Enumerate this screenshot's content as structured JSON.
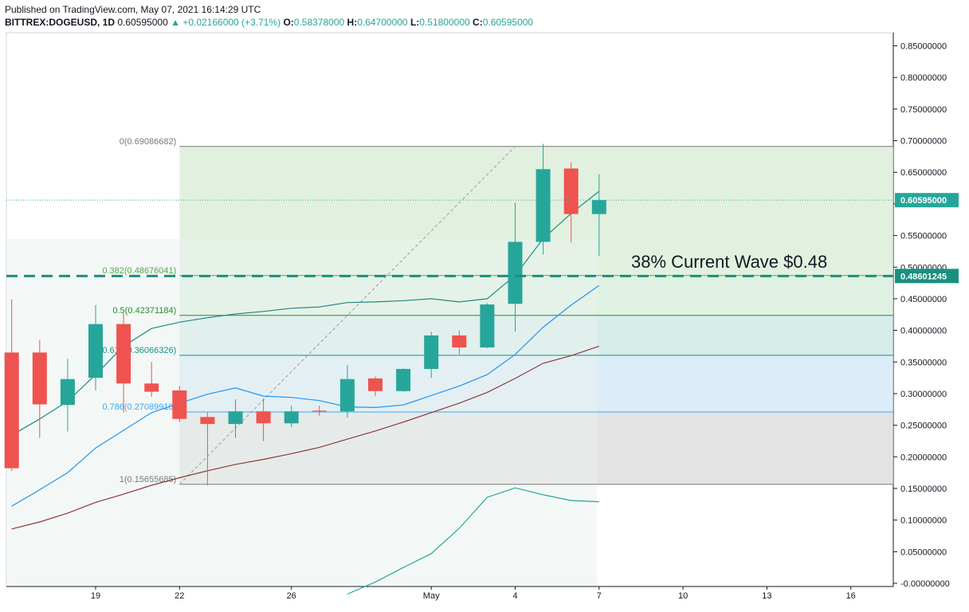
{
  "header": {
    "published": "Published on TradingView.com, May 07, 2021 16:14:29 UTC",
    "symbol": "BITTREX:DOGEUSD, 1D",
    "last": "0.60595000",
    "change": "▲ +0.02166000 (+3.71%)",
    "o_label": "O:",
    "o_value": "0.58378000",
    "h_label": "H:",
    "h_value": "0.64700000",
    "l_label": "L:",
    "l_value": "0.51800000",
    "c_label": "C:",
    "c_value": "0.60595000"
  },
  "colors": {
    "up": "#26a69a",
    "down": "#ef5350",
    "ema_fast": "#1f8a80",
    "ema_mid": "#2196f3",
    "ema_slow": "#8d3a3a",
    "dashed_level": "#1b8f7f",
    "fib_0": "#7a7a7a",
    "fib_0382": "#5aa64e",
    "fib_05": "#2e8b2e",
    "fib_0618": "#1e8f8a",
    "fib_0786": "#42a5f5",
    "fib_1": "#7a7a7a"
  },
  "annotation": {
    "text": "38% Current Wave $0.48"
  },
  "chart_data": {
    "type": "candlestick",
    "ylim": [
      0,
      0.88
    ],
    "y_ticks": [
      "0.85000000",
      "0.80000000",
      "0.75000000",
      "0.70000000",
      "0.65000000",
      "0.60000000",
      "0.55000000",
      "0.50000000",
      "0.45000000",
      "0.40000000",
      "0.35000000",
      "0.30000000",
      "0.25000000",
      "0.20000000",
      "0.15000000",
      "0.10000000",
      "0.05000000",
      "-0.00000000"
    ],
    "y_tick_values": [
      0.85,
      0.8,
      0.75,
      0.7,
      0.65,
      0.6,
      0.55,
      0.5,
      0.45,
      0.4,
      0.35,
      0.3,
      0.25,
      0.2,
      0.15,
      0.1,
      0.05,
      0
    ],
    "x_ticks": [
      "19",
      "22",
      "26",
      "May",
      "4",
      "7",
      "10",
      "13",
      "16"
    ],
    "x_tick_dates": [
      "2021-04-19",
      "2021-04-22",
      "2021-04-26",
      "2021-05-01",
      "2021-05-04",
      "2021-05-07",
      "2021-05-10",
      "2021-05-13",
      "2021-05-16"
    ],
    "candles": [
      {
        "date": "2021-04-16",
        "o": 0.365,
        "h": 0.449,
        "l": 0.178,
        "c": 0.182
      },
      {
        "date": "2021-04-17",
        "o": 0.365,
        "h": 0.385,
        "l": 0.23,
        "c": 0.283
      },
      {
        "date": "2021-04-18",
        "o": 0.282,
        "h": 0.355,
        "l": 0.24,
        "c": 0.323
      },
      {
        "date": "2021-04-19",
        "o": 0.325,
        "h": 0.44,
        "l": 0.305,
        "c": 0.41
      },
      {
        "date": "2021-04-20",
        "o": 0.41,
        "h": 0.427,
        "l": 0.27,
        "c": 0.316
      },
      {
        "date": "2021-04-21",
        "o": 0.316,
        "h": 0.35,
        "l": 0.295,
        "c": 0.303
      },
      {
        "date": "2021-04-22",
        "o": 0.305,
        "h": 0.312,
        "l": 0.255,
        "c": 0.26
      },
      {
        "date": "2021-04-23",
        "o": 0.263,
        "h": 0.27,
        "l": 0.155,
        "c": 0.252
      },
      {
        "date": "2021-04-24",
        "o": 0.252,
        "h": 0.291,
        "l": 0.23,
        "c": 0.272
      },
      {
        "date": "2021-04-25",
        "o": 0.272,
        "h": 0.292,
        "l": 0.225,
        "c": 0.253
      },
      {
        "date": "2021-04-26",
        "o": 0.253,
        "h": 0.281,
        "l": 0.247,
        "c": 0.272
      },
      {
        "date": "2021-04-27",
        "o": 0.273,
        "h": 0.281,
        "l": 0.265,
        "c": 0.272
      },
      {
        "date": "2021-04-28",
        "o": 0.272,
        "h": 0.345,
        "l": 0.262,
        "c": 0.323
      },
      {
        "date": "2021-04-29",
        "o": 0.324,
        "h": 0.327,
        "l": 0.296,
        "c": 0.304
      },
      {
        "date": "2021-04-30",
        "o": 0.304,
        "h": 0.34,
        "l": 0.303,
        "c": 0.339
      },
      {
        "date": "2021-05-01",
        "o": 0.339,
        "h": 0.398,
        "l": 0.325,
        "c": 0.392
      },
      {
        "date": "2021-05-02",
        "o": 0.392,
        "h": 0.4,
        "l": 0.362,
        "c": 0.373
      },
      {
        "date": "2021-05-03",
        "o": 0.373,
        "h": 0.443,
        "l": 0.372,
        "c": 0.441
      },
      {
        "date": "2021-05-04",
        "o": 0.442,
        "h": 0.602,
        "l": 0.398,
        "c": 0.54
      },
      {
        "date": "2021-05-05",
        "o": 0.54,
        "h": 0.695,
        "l": 0.52,
        "c": 0.655
      },
      {
        "date": "2021-05-06",
        "o": 0.656,
        "h": 0.666,
        "l": 0.539,
        "c": 0.584
      },
      {
        "date": "2021-05-07",
        "o": 0.584,
        "h": 0.647,
        "l": 0.518,
        "c": 0.606
      }
    ],
    "series": [
      {
        "values": [
          [
            "2021-04-16",
            0.234
          ],
          [
            "2021-04-17",
            0.26
          ],
          [
            "2021-04-18",
            0.288
          ],
          [
            "2021-04-19",
            0.33
          ],
          [
            "2021-04-20",
            0.375
          ],
          [
            "2021-04-21",
            0.403
          ],
          [
            "2021-04-22",
            0.413
          ],
          [
            "2021-04-23",
            0.42
          ],
          [
            "2021-04-24",
            0.426
          ],
          [
            "2021-04-25",
            0.43
          ],
          [
            "2021-04-26",
            0.435
          ],
          [
            "2021-04-27",
            0.437
          ],
          [
            "2021-04-28",
            0.444
          ],
          [
            "2021-04-29",
            0.445
          ],
          [
            "2021-04-30",
            0.447
          ],
          [
            "2021-05-01",
            0.45
          ],
          [
            "2021-05-02",
            0.445
          ],
          [
            "2021-05-03",
            0.45
          ],
          [
            "2021-05-04",
            0.487
          ],
          [
            "2021-05-05",
            0.545
          ],
          [
            "2021-05-06",
            0.585
          ],
          [
            "2021-05-07",
            0.62
          ]
        ]
      },
      {
        "values": [
          [
            "2021-04-16",
            0.122
          ],
          [
            "2021-04-17",
            0.148
          ],
          [
            "2021-04-18",
            0.175
          ],
          [
            "2021-04-19",
            0.214
          ],
          [
            "2021-04-20",
            0.242
          ],
          [
            "2021-04-21",
            0.27
          ],
          [
            "2021-04-22",
            0.285
          ],
          [
            "2021-04-23",
            0.299
          ],
          [
            "2021-04-24",
            0.309
          ],
          [
            "2021-04-25",
            0.296
          ],
          [
            "2021-04-26",
            0.294
          ],
          [
            "2021-04-27",
            0.289
          ],
          [
            "2021-04-28",
            0.279
          ],
          [
            "2021-04-29",
            0.278
          ],
          [
            "2021-04-30",
            0.282
          ],
          [
            "2021-05-01",
            0.297
          ],
          [
            "2021-05-02",
            0.312
          ],
          [
            "2021-05-03",
            0.33
          ],
          [
            "2021-05-04",
            0.362
          ],
          [
            "2021-05-05",
            0.405
          ],
          [
            "2021-05-06",
            0.44
          ],
          [
            "2021-05-07",
            0.471
          ]
        ]
      },
      {
        "values": [
          [
            "2021-04-16",
            0.086
          ],
          [
            "2021-04-17",
            0.097
          ],
          [
            "2021-04-18",
            0.111
          ],
          [
            "2021-04-19",
            0.128
          ],
          [
            "2021-04-20",
            0.141
          ],
          [
            "2021-04-21",
            0.155
          ],
          [
            "2021-04-22",
            0.167
          ],
          [
            "2021-04-23",
            0.178
          ],
          [
            "2021-04-24",
            0.188
          ],
          [
            "2021-04-25",
            0.196
          ],
          [
            "2021-04-26",
            0.205
          ],
          [
            "2021-04-27",
            0.215
          ],
          [
            "2021-04-28",
            0.228
          ],
          [
            "2021-04-29",
            0.241
          ],
          [
            "2021-04-30",
            0.255
          ],
          [
            "2021-05-01",
            0.27
          ],
          [
            "2021-05-02",
            0.285
          ],
          [
            "2021-05-03",
            0.302
          ],
          [
            "2021-05-04",
            0.324
          ],
          [
            "2021-05-05",
            0.348
          ],
          [
            "2021-05-06",
            0.36
          ],
          [
            "2021-05-07",
            0.375
          ]
        ]
      },
      {
        "values": [
          [
            "2021-04-28",
            -0.017
          ],
          [
            "2021-04-29",
            0.002
          ],
          [
            "2021-04-30",
            0.025
          ],
          [
            "2021-05-01",
            0.047
          ],
          [
            "2021-05-02",
            0.087
          ],
          [
            "2021-05-03",
            0.136
          ],
          [
            "2021-05-04",
            0.151
          ],
          [
            "2021-05-05",
            0.14
          ],
          [
            "2021-05-06",
            0.131
          ],
          [
            "2021-05-07",
            0.129
          ]
        ]
      }
    ],
    "fib": {
      "start_date": "2021-04-22",
      "levels": [
        {
          "ratio": "0",
          "label": "0(0.69086682)",
          "value": 0.69086682
        },
        {
          "ratio": "0.382",
          "label": "0.382(0.48676041)",
          "value": 0.48676041
        },
        {
          "ratio": "0.5",
          "label": "0.5(0.42371184)",
          "value": 0.42371184
        },
        {
          "ratio": "0.618",
          "label": "0.618(0.36066326)",
          "value": 0.36066326
        },
        {
          "ratio": "0.786",
          "label": "0.786(0.27089918)",
          "value": 0.27089918
        },
        {
          "ratio": "1",
          "label": "1(0.15655685)",
          "value": 0.15655685
        }
      ],
      "trend_line": [
        [
          "2021-04-22",
          0.15655685
        ],
        [
          "2021-05-04",
          0.69086682
        ]
      ]
    },
    "horizontal_line": {
      "value": 0.48601245,
      "label": "0.48601245"
    },
    "last_price": {
      "value": 0.60595,
      "label": "0.60595000"
    }
  }
}
